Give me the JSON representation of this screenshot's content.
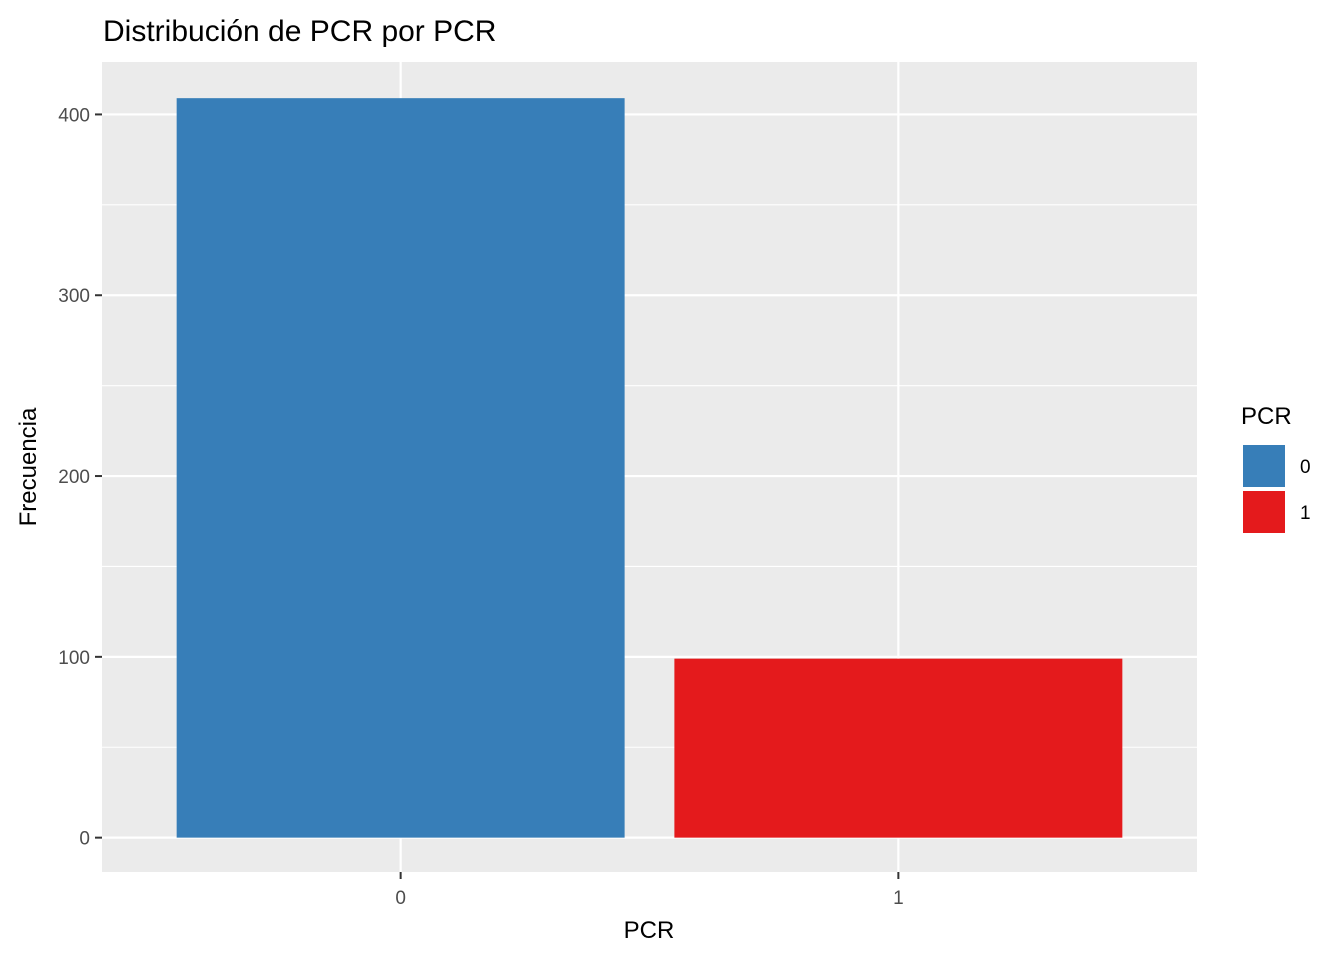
{
  "chart_data": {
    "type": "bar",
    "title": "Distribución de PCR por PCR",
    "xlabel": "PCR",
    "ylabel": "Frecuencia",
    "categories": [
      "0",
      "1"
    ],
    "values": [
      409,
      99
    ],
    "colors": [
      "#377EB8",
      "#E41A1C"
    ],
    "ylim": [
      -19,
      429
    ],
    "yticks": [
      0,
      100,
      200,
      300,
      400
    ],
    "grid": true,
    "panel_background": "#EBEBEB",
    "legend": {
      "title": "PCR",
      "position": "right",
      "items": [
        {
          "label": "0",
          "color": "#377EB8"
        },
        {
          "label": "1",
          "color": "#E41A1C"
        }
      ]
    }
  }
}
